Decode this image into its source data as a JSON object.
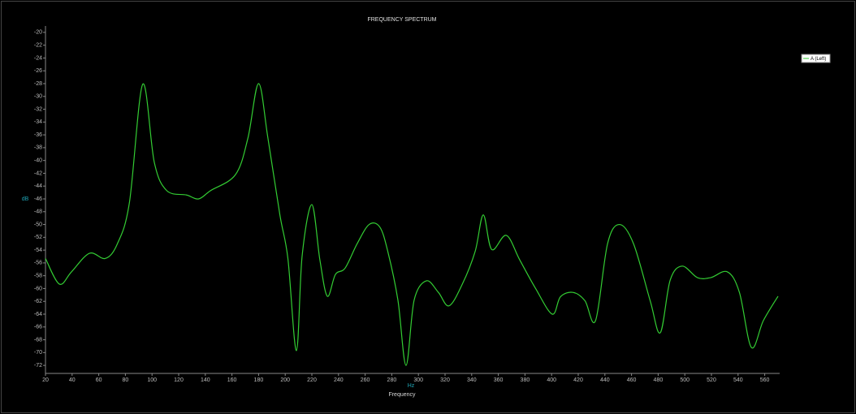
{
  "chart_data": {
    "type": "line",
    "title": "FREQUENCY SPECTRUM",
    "x_label": "Frequency",
    "x_unit": "Hz",
    "y_unit": "dB",
    "x": [
      20,
      30.4,
      39.5,
      53,
      65,
      74,
      83,
      93,
      101.7,
      111,
      126,
      135,
      144,
      162.7,
      172,
      180,
      187,
      196,
      202,
      208.4,
      212.7,
      220,
      226,
      231.6,
      237.7,
      245,
      254,
      263,
      271,
      277,
      284.6,
      290.7,
      296.8,
      306,
      315,
      323,
      333,
      342.6,
      348.7,
      355,
      366,
      376,
      388,
      400.5,
      406.6,
      416,
      425,
      433,
      442,
      451,
      461.5,
      474,
      481.6,
      489,
      498,
      509.5,
      519.4,
      532,
      541,
      550,
      559,
      570
    ],
    "series": [
      {
        "name": "A (Left)",
        "color": "#33cc33",
        "values": [
          -55.3,
          -59.3,
          -57.4,
          -54.5,
          -55.3,
          -53,
          -46.6,
          -28.1,
          -40.3,
          -44.7,
          -45.4,
          -46,
          -44.7,
          -42.2,
          -36.5,
          -28,
          -36.5,
          -48.5,
          -55.3,
          -69.7,
          -54.9,
          -46.9,
          -55.5,
          -61.2,
          -57.8,
          -56.8,
          -53,
          -50,
          -50.4,
          -54.2,
          -61.8,
          -72,
          -61.8,
          -58.8,
          -60.6,
          -62.7,
          -59.3,
          -54.2,
          -48.5,
          -53.9,
          -51.7,
          -55.5,
          -60,
          -64,
          -61.3,
          -60.6,
          -61.9,
          -65,
          -53,
          -50,
          -53,
          -61.9,
          -66.9,
          -58.7,
          -56.5,
          -58.3,
          -58.3,
          -57.4,
          -60.6,
          -69.2,
          -65,
          -61.2
        ]
      }
    ],
    "xlim": [
      20,
      570
    ],
    "ylim": [
      -73,
      -19
    ],
    "xticks": [
      20,
      40,
      60,
      80,
      100,
      120,
      140,
      160,
      180,
      200,
      220,
      240,
      260,
      280,
      300,
      320,
      340,
      360,
      380,
      400,
      420,
      440,
      460,
      480,
      500,
      520,
      540,
      560
    ],
    "yticks": [
      -20,
      -22,
      -24,
      -26,
      -28,
      -30,
      -32,
      -34,
      -36,
      -38,
      -40,
      -42,
      -44,
      -46,
      -48,
      -50,
      -52,
      -54,
      -56,
      -58,
      -60,
      -62,
      -64,
      -66,
      -68,
      -70,
      -72
    ]
  }
}
